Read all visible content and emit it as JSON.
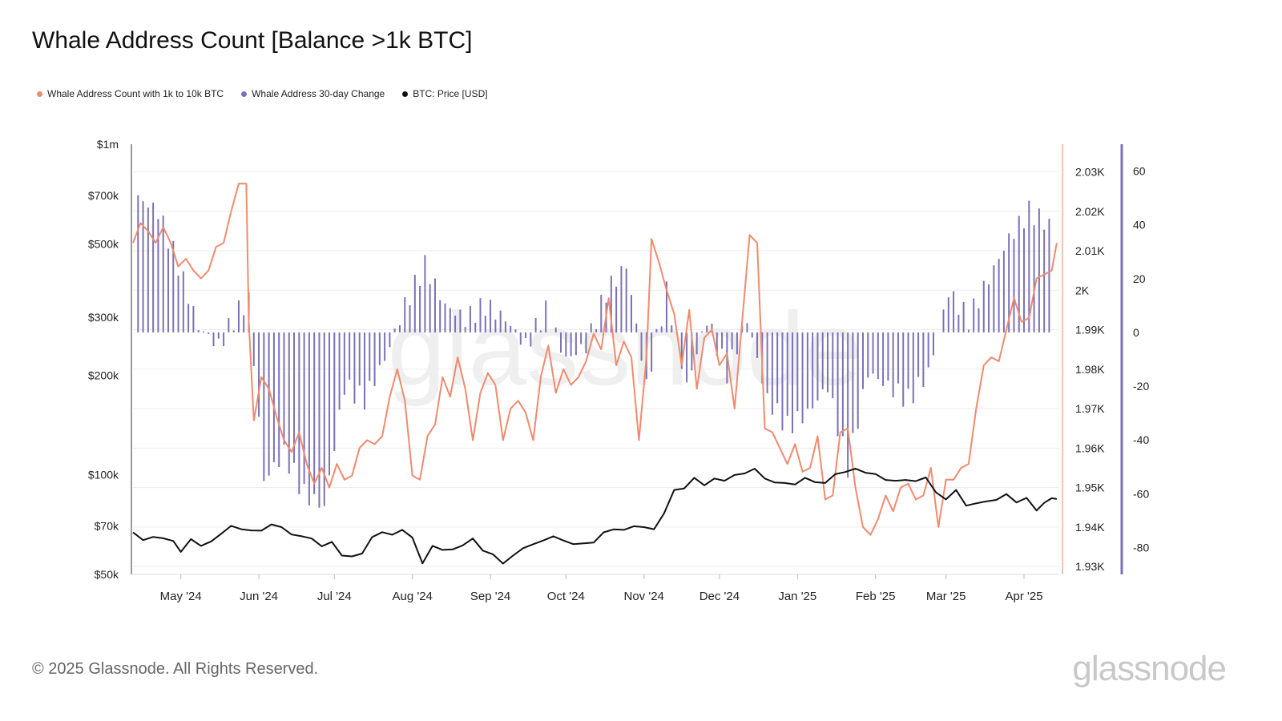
{
  "title": "Whale Address Count [Balance >1k BTC]",
  "legend": [
    {
      "label": "Whale Address Count with 1k to 10k BTC",
      "color": "#f08a6e"
    },
    {
      "label": "Whale Address 30-day Change",
      "color": "#7b72b4"
    },
    {
      "label": "BTC: Price [USD]",
      "color": "#111111"
    }
  ],
  "footer": "© 2025 Glassnode. All Rights Reserved.",
  "brand": "glassnode",
  "chart_data": {
    "type": "line",
    "x_range": [
      "2024-04-12",
      "2025-04-15"
    ],
    "x_ticks": [
      "May '24",
      "Jun '24",
      "Jul '24",
      "Aug '24",
      "Sep '24",
      "Oct '24",
      "Nov '24",
      "Dec '24",
      "Jan '25",
      "Feb '25",
      "Mar '25",
      "Apr '25"
    ],
    "axes": {
      "price": {
        "scale": "log",
        "min": 50000,
        "max": 1000000,
        "ticks": [
          "$1m",
          "$700k",
          "$500k",
          "$300k",
          "$200k",
          "$100k",
          "$70k",
          "$50k"
        ],
        "tick_values": [
          1000000,
          700000,
          500000,
          300000,
          200000,
          100000,
          70000,
          50000
        ]
      },
      "count": {
        "scale": "linear",
        "min": 1928,
        "max": 2037,
        "ticks": [
          "2.03K",
          "2.02K",
          "2.01K",
          "2K",
          "1.99K",
          "1.98K",
          "1.97K",
          "1.96K",
          "1.95K",
          "1.94K",
          "1.93K"
        ],
        "tick_values": [
          2030,
          2020,
          2010,
          2000,
          1990,
          1980,
          1970,
          1960,
          1950,
          1940,
          1930
        ]
      },
      "change": {
        "scale": "linear",
        "min": -90,
        "max": 70,
        "ticks": [
          "60",
          "40",
          "20",
          "0",
          "-20",
          "-40",
          "-60",
          "-80"
        ],
        "tick_values": [
          60,
          40,
          20,
          0,
          -20,
          -40,
          -60,
          -80
        ]
      }
    },
    "grid": true,
    "legend_position": "top-left",
    "series": [
      {
        "name": "Whale Address Count with 1k to 10k BTC",
        "axis": "count",
        "color": "#f08a6e",
        "x": [
          "2024-04-12",
          "2024-04-15",
          "2024-04-18",
          "2024-04-21",
          "2024-04-24",
          "2024-04-27",
          "2024-04-30",
          "2024-05-03",
          "2024-05-06",
          "2024-05-09",
          "2024-05-12",
          "2024-05-15",
          "2024-05-18",
          "2024-05-21",
          "2024-05-24",
          "2024-05-27",
          "2024-05-28",
          "2024-05-30",
          "2024-06-02",
          "2024-06-05",
          "2024-06-08",
          "2024-06-11",
          "2024-06-14",
          "2024-06-17",
          "2024-06-20",
          "2024-06-23",
          "2024-06-26",
          "2024-06-29",
          "2024-07-02",
          "2024-07-05",
          "2024-07-08",
          "2024-07-11",
          "2024-07-14",
          "2024-07-17",
          "2024-07-20",
          "2024-07-23",
          "2024-07-26",
          "2024-07-29",
          "2024-08-01",
          "2024-08-04",
          "2024-08-07",
          "2024-08-10",
          "2024-08-13",
          "2024-08-16",
          "2024-08-19",
          "2024-08-22",
          "2024-08-25",
          "2024-08-28",
          "2024-08-31",
          "2024-09-03",
          "2024-09-06",
          "2024-09-09",
          "2024-09-12",
          "2024-09-15",
          "2024-09-18",
          "2024-09-21",
          "2024-09-24",
          "2024-09-27",
          "2024-09-30",
          "2024-10-03",
          "2024-10-06",
          "2024-10-09",
          "2024-10-12",
          "2024-10-15",
          "2024-10-18",
          "2024-10-21",
          "2024-10-24",
          "2024-10-27",
          "2024-10-30",
          "2024-11-02",
          "2024-11-04",
          "2024-11-07",
          "2024-11-10",
          "2024-11-13",
          "2024-11-16",
          "2024-11-19",
          "2024-11-22",
          "2024-11-25",
          "2024-11-28",
          "2024-12-01",
          "2024-12-04",
          "2024-12-07",
          "2024-12-10",
          "2024-12-13",
          "2024-12-16",
          "2024-12-19",
          "2024-12-22",
          "2024-12-25",
          "2024-12-28",
          "2024-12-31",
          "2025-01-03",
          "2025-01-06",
          "2025-01-09",
          "2025-01-12",
          "2025-01-15",
          "2025-01-18",
          "2025-01-21",
          "2025-01-24",
          "2025-01-27",
          "2025-01-30",
          "2025-02-02",
          "2025-02-05",
          "2025-02-08",
          "2025-02-11",
          "2025-02-14",
          "2025-02-17",
          "2025-02-20",
          "2025-02-23",
          "2025-02-26",
          "2025-03-01",
          "2025-03-04",
          "2025-03-07",
          "2025-03-10",
          "2025-03-13",
          "2025-03-16",
          "2025-03-19",
          "2025-03-22",
          "2025-03-25",
          "2025-03-28",
          "2025-03-31",
          "2025-04-03",
          "2025-04-06",
          "2025-04-09",
          "2025-04-12",
          "2025-04-14"
        ],
        "y": [
          2012,
          2017,
          2015,
          2012,
          2016,
          2012,
          2006,
          2008,
          2005,
          2003,
          2005,
          2011,
          2012,
          2020,
          2027,
          2027,
          1992,
          1967,
          1978,
          1975,
          1968,
          1962,
          1959,
          1964,
          1956,
          1951,
          1955,
          1950,
          1956,
          1952,
          1953,
          1960,
          1962,
          1961,
          1963,
          1973,
          1980,
          1972,
          1953,
          1952,
          1963,
          1966,
          1978,
          1973,
          1983,
          1975,
          1962,
          1974,
          1979,
          1976,
          1962,
          1970,
          1972,
          1969,
          1962,
          1978,
          1986,
          1974,
          1980,
          1976,
          1978,
          1982,
          1989,
          1985,
          1998,
          1981,
          1987,
          1983,
          1962,
          1983,
          2013,
          2007,
          2000,
          1994,
          1981,
          1995,
          1975,
          1988,
          1990,
          1981,
          1984,
          1970,
          1992,
          2014,
          2012,
          1965,
          1964,
          1960,
          1956,
          1961,
          1954,
          1955,
          1963,
          1947,
          1948,
          1964,
          1965,
          1950,
          1940,
          1938,
          1942,
          1948,
          1944,
          1950,
          1951,
          1947,
          1948,
          1955,
          1940,
          1952,
          1952,
          1955,
          1956,
          1970,
          1981,
          1983,
          1982,
          1990,
          1998,
          1992,
          1993,
          2003,
          2004,
          2005,
          2012
        ]
      },
      {
        "name": "Whale Address 30-day Change",
        "axis": "change",
        "color": "#7b72b4",
        "type": "bar",
        "x": [
          "2024-04-14",
          "2024-04-22",
          "2024-04-30",
          "2024-05-08",
          "2024-05-16",
          "2024-05-24",
          "2024-05-28",
          "2024-06-03",
          "2024-06-11",
          "2024-06-19",
          "2024-06-27",
          "2024-07-05",
          "2024-07-13",
          "2024-07-21",
          "2024-07-29",
          "2024-08-06",
          "2024-08-14",
          "2024-08-22",
          "2024-08-30",
          "2024-09-07",
          "2024-09-15",
          "2024-09-23",
          "2024-10-01",
          "2024-10-09",
          "2024-10-17",
          "2024-10-25",
          "2024-11-02",
          "2024-11-10",
          "2024-11-18",
          "2024-11-26",
          "2024-12-04",
          "2024-12-12",
          "2024-12-20",
          "2024-12-28",
          "2025-01-05",
          "2025-01-13",
          "2025-01-21",
          "2025-01-29",
          "2025-02-06",
          "2025-02-14",
          "2025-02-22",
          "2025-03-02",
          "2025-03-10",
          "2025-03-18",
          "2025-03-26",
          "2025-04-03",
          "2025-04-11"
        ],
        "y": [
          50,
          45,
          25,
          2,
          -5,
          8,
          12,
          -55,
          -45,
          -60,
          -65,
          -20,
          -25,
          -10,
          10,
          25,
          10,
          5,
          10,
          5,
          -5,
          8,
          -10,
          -5,
          15,
          25,
          -20,
          15,
          -20,
          5,
          -15,
          5,
          -25,
          -35,
          -30,
          -20,
          -50,
          -15,
          -20,
          -25,
          -15,
          15,
          5,
          20,
          35,
          45,
          40
        ]
      },
      {
        "name": "BTC: Price [USD]",
        "axis": "price",
        "color": "#111111",
        "x": [
          "2024-04-12",
          "2024-04-16",
          "2024-04-20",
          "2024-04-24",
          "2024-04-28",
          "2024-05-01",
          "2024-05-05",
          "2024-05-09",
          "2024-05-13",
          "2024-05-17",
          "2024-05-21",
          "2024-05-25",
          "2024-05-29",
          "2024-06-02",
          "2024-06-06",
          "2024-06-10",
          "2024-06-14",
          "2024-06-18",
          "2024-06-22",
          "2024-06-26",
          "2024-06-30",
          "2024-07-04",
          "2024-07-08",
          "2024-07-12",
          "2024-07-16",
          "2024-07-20",
          "2024-07-24",
          "2024-07-28",
          "2024-08-01",
          "2024-08-05",
          "2024-08-09",
          "2024-08-13",
          "2024-08-17",
          "2024-08-21",
          "2024-08-25",
          "2024-08-29",
          "2024-09-02",
          "2024-09-06",
          "2024-09-10",
          "2024-09-14",
          "2024-09-18",
          "2024-09-22",
          "2024-09-26",
          "2024-09-30",
          "2024-10-04",
          "2024-10-08",
          "2024-10-12",
          "2024-10-16",
          "2024-10-20",
          "2024-10-24",
          "2024-10-28",
          "2024-11-01",
          "2024-11-05",
          "2024-11-09",
          "2024-11-13",
          "2024-11-17",
          "2024-11-21",
          "2024-11-25",
          "2024-11-29",
          "2024-12-03",
          "2024-12-07",
          "2024-12-11",
          "2024-12-15",
          "2024-12-19",
          "2024-12-23",
          "2024-12-27",
          "2024-12-31",
          "2025-01-04",
          "2025-01-08",
          "2025-01-12",
          "2025-01-16",
          "2025-01-20",
          "2025-01-24",
          "2025-01-28",
          "2025-02-01",
          "2025-02-05",
          "2025-02-09",
          "2025-02-13",
          "2025-02-17",
          "2025-02-21",
          "2025-02-25",
          "2025-03-01",
          "2025-03-05",
          "2025-03-09",
          "2025-03-13",
          "2025-03-17",
          "2025-03-21",
          "2025-03-25",
          "2025-03-29",
          "2025-04-02",
          "2025-04-06",
          "2025-04-09",
          "2025-04-12",
          "2025-04-14"
        ],
        "y": [
          67000,
          63500,
          64900,
          64300,
          63100,
          58500,
          63900,
          61000,
          62900,
          66300,
          70100,
          68500,
          67900,
          67800,
          70800,
          69500,
          66000,
          65200,
          64200,
          60800,
          62700,
          57000,
          56700,
          57800,
          64800,
          67100,
          65900,
          68200,
          64600,
          54000,
          61000,
          59300,
          59500,
          61200,
          64200,
          59000,
          57500,
          53900,
          57000,
          60000,
          61700,
          63300,
          65200,
          63300,
          61700,
          62100,
          62400,
          67000,
          68400,
          68200,
          69900,
          69500,
          68500,
          76500,
          90000,
          91000,
          98000,
          93000,
          97500,
          96000,
          99900,
          101000,
          104400,
          97500,
          94800,
          94500,
          93500,
          98000,
          95000,
          94500,
          100500,
          102000,
          104500,
          101500,
          100600,
          96500,
          96000,
          96500,
          95700,
          98200,
          88500,
          84300,
          90000,
          80700,
          82000,
          83100,
          84000,
          87500,
          82500,
          85200,
          78000,
          82300,
          85000,
          84500
        ]
      }
    ]
  }
}
